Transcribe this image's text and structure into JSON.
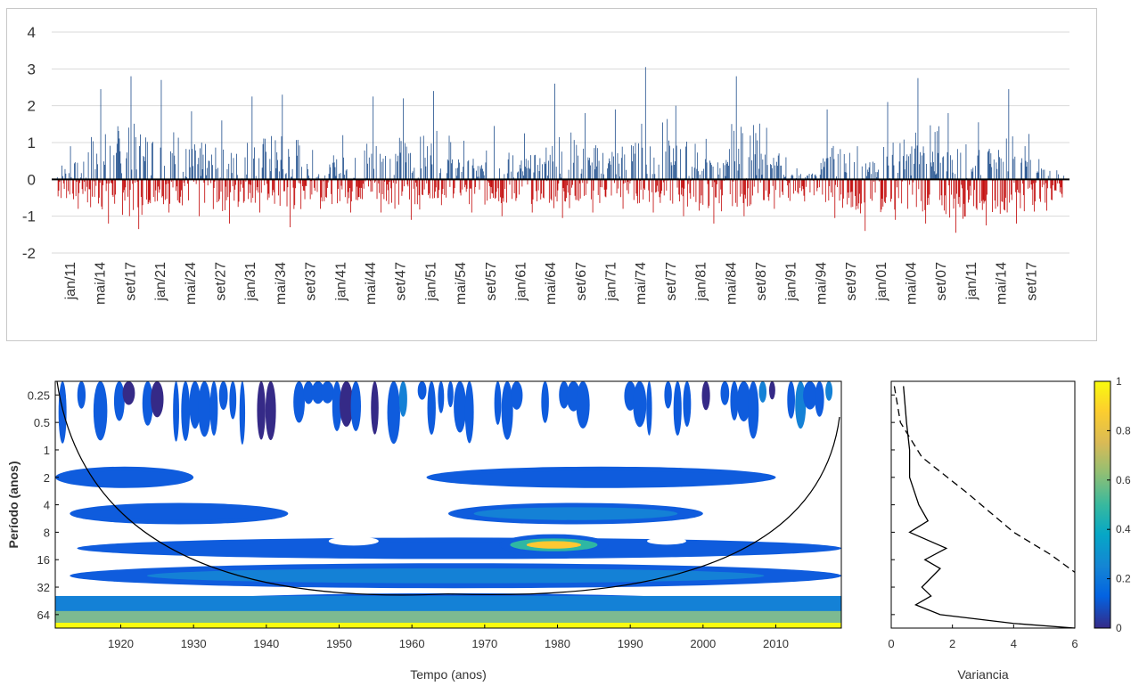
{
  "colors": {
    "positive": "#1f4e8c",
    "negative": "#c00000",
    "grid": "#d9d9d9",
    "axis": "#000000"
  },
  "chart_data": [
    {
      "type": "bar",
      "title": "",
      "xlabel": "",
      "ylabel": "",
      "ylim": [
        -2,
        4
      ],
      "yticks": [
        4,
        3,
        2,
        1,
        0,
        -1,
        -2
      ],
      "grid": true,
      "categories": [
        "jan/11",
        "mai/14",
        "set/17",
        "jan/21",
        "mai/24",
        "set/27",
        "jan/31",
        "mai/34",
        "set/37",
        "jan/41",
        "mai/44",
        "set/47",
        "jan/51",
        "mai/54",
        "set/57",
        "jan/61",
        "mai/64",
        "set/67",
        "jan/71",
        "mai/74",
        "set/77",
        "jan/81",
        "mai/84",
        "set/87",
        "jan/91",
        "mai/94",
        "set/97",
        "jan/01",
        "mai/04",
        "set/07",
        "jan/11",
        "mai/14",
        "set/17"
      ],
      "note_series": "monthly anomaly bars, positive blue / negative red",
      "peaks": [
        {
          "x": "jan/11",
          "y": 0.9
        },
        {
          "x": "mai/14",
          "y": 2.45
        },
        {
          "x": "set/17",
          "y": 2.8
        },
        {
          "x": "jan/21",
          "y": 2.7
        },
        {
          "x": "mai/24",
          "y": 1.85
        },
        {
          "x": "set/27",
          "y": 1.6
        },
        {
          "x": "jan/31",
          "y": 2.25
        },
        {
          "x": "mai/34",
          "y": 2.3
        },
        {
          "x": "set/37",
          "y": 0.8
        },
        {
          "x": "jan/41",
          "y": 1.2
        },
        {
          "x": "mai/44",
          "y": 2.25
        },
        {
          "x": "set/47",
          "y": 2.2
        },
        {
          "x": "jan/51",
          "y": 2.4
        },
        {
          "x": "mai/54",
          "y": 1.05
        },
        {
          "x": "set/57",
          "y": 1.45
        },
        {
          "x": "jan/61",
          "y": 1.25
        },
        {
          "x": "mai/64",
          "y": 2.6
        },
        {
          "x": "set/67",
          "y": 1.8
        },
        {
          "x": "jan/71",
          "y": 1.9
        },
        {
          "x": "mai/74",
          "y": 3.05
        },
        {
          "x": "set/77",
          "y": 2.0
        },
        {
          "x": "jan/81",
          "y": 1.1
        },
        {
          "x": "mai/84",
          "y": 2.8
        },
        {
          "x": "set/87",
          "y": 1.4
        },
        {
          "x": "jan/91",
          "y": 0.3
        },
        {
          "x": "mai/94",
          "y": 1.9
        },
        {
          "x": "set/97",
          "y": 0.9
        },
        {
          "x": "jan/01",
          "y": 2.1
        },
        {
          "x": "mai/04",
          "y": 2.75
        },
        {
          "x": "set/07",
          "y": 1.8
        },
        {
          "x": "jan/11",
          "y": 1.55
        },
        {
          "x": "mai/14",
          "y": 2.45
        },
        {
          "x": "set/17",
          "y": 0.55
        }
      ],
      "troughs": [
        {
          "x": "jan/11",
          "y": -0.8
        },
        {
          "x": "mai/14",
          "y": -1.2
        },
        {
          "x": "set/17",
          "y": -1.35
        },
        {
          "x": "jan/21",
          "y": -0.9
        },
        {
          "x": "mai/24",
          "y": -1.0
        },
        {
          "x": "set/27",
          "y": -1.2
        },
        {
          "x": "jan/31",
          "y": -0.9
        },
        {
          "x": "mai/34",
          "y": -1.3
        },
        {
          "x": "set/37",
          "y": -0.8
        },
        {
          "x": "jan/41",
          "y": -0.9
        },
        {
          "x": "mai/44",
          "y": -0.9
        },
        {
          "x": "set/47",
          "y": -1.1
        },
        {
          "x": "jan/51",
          "y": -0.7
        },
        {
          "x": "mai/54",
          "y": -0.9
        },
        {
          "x": "set/57",
          "y": -1.0
        },
        {
          "x": "jan/61",
          "y": -0.9
        },
        {
          "x": "mai/64",
          "y": -1.05
        },
        {
          "x": "set/67",
          "y": -0.9
        },
        {
          "x": "jan/71",
          "y": -0.8
        },
        {
          "x": "mai/74",
          "y": -0.9
        },
        {
          "x": "set/77",
          "y": -1.0
        },
        {
          "x": "jan/81",
          "y": -1.2
        },
        {
          "x": "mai/84",
          "y": -1.0
        },
        {
          "x": "set/87",
          "y": -0.8
        },
        {
          "x": "jan/91",
          "y": -0.6
        },
        {
          "x": "mai/94",
          "y": -1.05
        },
        {
          "x": "set/97",
          "y": -1.4
        },
        {
          "x": "jan/01",
          "y": -1.1
        },
        {
          "x": "mai/04",
          "y": -1.2
        },
        {
          "x": "set/07",
          "y": -1.45
        },
        {
          "x": "jan/11",
          "y": -1.25
        },
        {
          "x": "mai/14",
          "y": -1.2
        },
        {
          "x": "set/17",
          "y": -0.85
        }
      ]
    },
    {
      "type": "heatmap",
      "title": "",
      "xlabel": "Tempo (anos)",
      "ylabel": "Período (anos)",
      "xlim": [
        1911,
        2019
      ],
      "xticks": [
        1920,
        1930,
        1940,
        1950,
        1960,
        1970,
        1980,
        1990,
        2000,
        2010
      ],
      "ylim": [
        0.177,
        90
      ],
      "y_scale": "log2",
      "yticks": [
        "0.25",
        "0.5",
        "1",
        "2",
        "4",
        "8",
        "16",
        "32",
        "64"
      ],
      "color_range": [
        0,
        1
      ],
      "note_series": "wavelet power spectrum; strongest power near 8-16 yr band around 1975-1985 and 64 yr band",
      "cone_of_influence": true,
      "bands": [
        {
          "period": 64,
          "x_start": 1911,
          "x_end": 2019,
          "power": 0.8
        },
        {
          "period": 24,
          "x_start": 1913,
          "x_end": 2019,
          "power": 0.35
        },
        {
          "period": 12,
          "x_start": 1914,
          "x_end": 2019,
          "power": 0.3
        },
        {
          "period": 11,
          "x_start": 1972,
          "x_end": 1987,
          "power": 0.85
        },
        {
          "period": 5,
          "x_start": 1913,
          "x_end": 1943,
          "power": 0.2
        },
        {
          "period": 5,
          "x_start": 1965,
          "x_end": 2000,
          "power": 0.35
        },
        {
          "period": 2,
          "x_start": 1911,
          "x_end": 1930,
          "power": 0.3
        },
        {
          "period": 2,
          "x_start": 1962,
          "x_end": 2010,
          "power": 0.2
        }
      ]
    },
    {
      "type": "line",
      "title": "",
      "xlabel": "Variancia",
      "ylabel": "",
      "xlim": [
        0,
        6
      ],
      "xticks": [
        0,
        2,
        4,
        6
      ],
      "ylim": [
        0.177,
        90
      ],
      "y_scale": "log2",
      "series": [
        {
          "style": "solid",
          "points": [
            [
              0.4,
              0.2
            ],
            [
              0.5,
              0.5
            ],
            [
              0.6,
              1
            ],
            [
              0.6,
              2
            ],
            [
              0.9,
              4
            ],
            [
              1.2,
              6
            ],
            [
              0.6,
              8
            ],
            [
              1.8,
              12
            ],
            [
              1.1,
              16
            ],
            [
              1.6,
              20
            ],
            [
              1.0,
              32
            ],
            [
              1.3,
              40
            ],
            [
              0.8,
              50
            ],
            [
              1.6,
              64
            ],
            [
              4,
              80
            ],
            [
              6,
              90
            ]
          ]
        },
        {
          "style": "dashed",
          "points": [
            [
              0.1,
              0.2
            ],
            [
              0.3,
              0.5
            ],
            [
              1.0,
              1.2
            ],
            [
              2.5,
              3
            ],
            [
              4.0,
              8
            ],
            [
              5.2,
              14
            ],
            [
              6,
              22
            ]
          ]
        }
      ]
    },
    {
      "type": "colorbar",
      "ticks": [
        "1",
        "0.8",
        "0.6",
        "0.4",
        "0.2",
        "0"
      ],
      "range": [
        0,
        1
      ]
    }
  ]
}
